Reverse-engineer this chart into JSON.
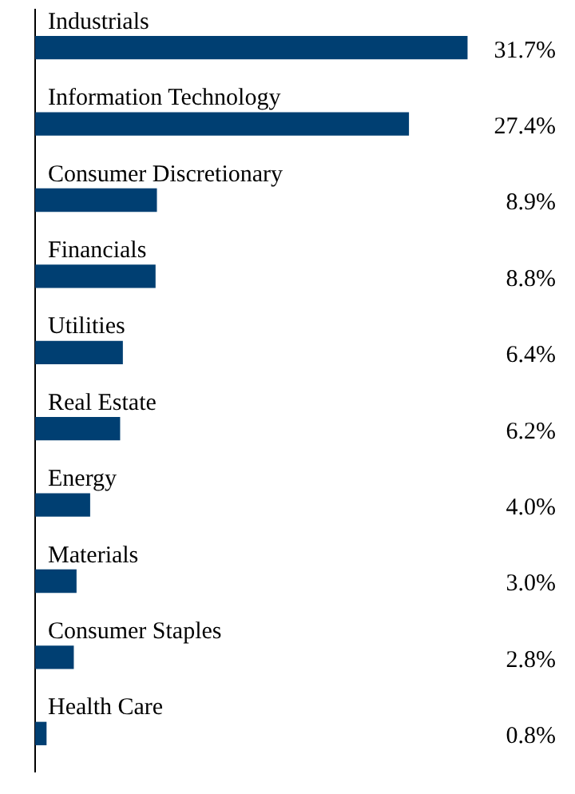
{
  "chart_data": {
    "type": "bar",
    "orientation": "horizontal",
    "color": "#003f72",
    "legend": false,
    "grid": false,
    "categories": [
      "Industrials",
      "Information Technology",
      "Consumer Discretionary",
      "Financials",
      "Utilities",
      "Real Estate",
      "Energy",
      "Materials",
      "Consumer Staples",
      "Health Care"
    ],
    "values": [
      31.7,
      27.4,
      8.9,
      8.8,
      6.4,
      6.2,
      4.0,
      3.0,
      2.8,
      0.8
    ],
    "value_labels": [
      "31.7%",
      "27.4%",
      "8.9%",
      "8.8%",
      "6.4%",
      "6.2%",
      "4.0%",
      "3.0%",
      "2.8%",
      "0.8%"
    ]
  }
}
